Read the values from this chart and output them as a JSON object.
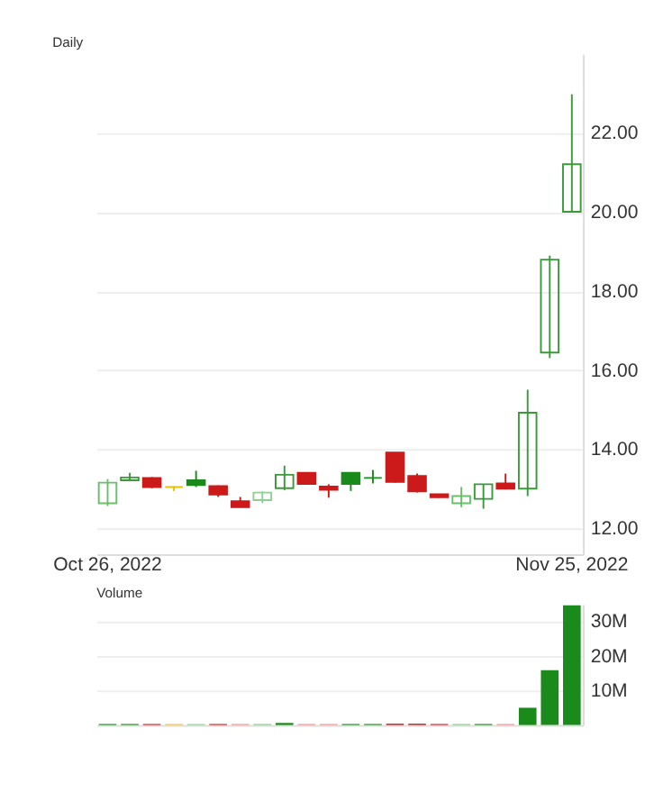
{
  "chart_data": [
    {
      "type": "candlestick",
      "title": "Daily",
      "categories": [
        "Oct 26, 2022",
        null,
        null,
        null,
        null,
        null,
        null,
        null,
        null,
        null,
        null,
        null,
        null,
        null,
        null,
        null,
        null,
        null,
        null,
        null,
        null,
        "Nov 25, 2022"
      ],
      "ohlc": [
        [
          12.64,
          13.25,
          12.57,
          13.16
        ],
        [
          13.22,
          13.41,
          13.2,
          13.29
        ],
        [
          13.28,
          13.3,
          13.02,
          13.05
        ],
        [
          13.05,
          13.07,
          12.95,
          13.05
        ],
        [
          13.22,
          13.46,
          13.05,
          13.1
        ],
        [
          13.07,
          13.09,
          12.8,
          12.86
        ],
        [
          12.69,
          12.8,
          12.53,
          12.54
        ],
        [
          12.72,
          12.94,
          12.64,
          12.91
        ],
        [
          13.02,
          13.59,
          12.97,
          13.36
        ],
        [
          13.41,
          13.41,
          13.12,
          13.13
        ],
        [
          13.06,
          13.12,
          12.78,
          12.98
        ],
        [
          13.41,
          13.41,
          12.95,
          13.13
        ],
        [
          13.28,
          13.48,
          13.14,
          13.28
        ],
        [
          13.92,
          13.92,
          13.16,
          13.18
        ],
        [
          13.33,
          13.39,
          12.91,
          12.94
        ],
        [
          12.87,
          12.87,
          12.78,
          12.79
        ],
        [
          12.64,
          13.05,
          12.54,
          12.82
        ],
        [
          12.75,
          13.12,
          12.5,
          13.12
        ],
        [
          13.14,
          13.39,
          12.99,
          13.01
        ],
        [
          13.01,
          15.51,
          12.82,
          14.93
        ],
        [
          16.45,
          18.9,
          16.31,
          18.8
        ],
        [
          20.01,
          22.98,
          20.0,
          21.21
        ]
      ],
      "colors": [
        "#6abf6a",
        "#3a9a3a",
        "#cc1a1a",
        "#e6c200",
        "#1a8a1a",
        "#cc1a1a",
        "#cc1a1a",
        "#8fd08f",
        "#3a9a3a",
        "#cc1a1a",
        "#cc1a1a",
        "#1a8a1a",
        "#1a8a1a",
        "#cc1a1a",
        "#cc1a1a",
        "#cc1a1a",
        "#6abf6a",
        "#3a9a3a",
        "#cc1a1a",
        "#3a9a3a",
        "#3a9a3a",
        "#3a9a3a"
      ],
      "ylim": [
        11.35,
        24
      ],
      "yticks": [
        {
          "value": 12,
          "label": "12.00"
        },
        {
          "value": 14,
          "label": "14.00"
        },
        {
          "value": 16,
          "label": "16.00"
        },
        {
          "value": 18,
          "label": "18.00"
        },
        {
          "value": 20,
          "label": "20.00"
        },
        {
          "value": 22,
          "label": "22.00"
        }
      ],
      "grid": "y"
    },
    {
      "type": "bar",
      "title": "Volume",
      "categories": [
        null,
        null,
        null,
        null,
        null,
        null,
        null,
        null,
        null,
        null,
        null,
        null,
        null,
        null,
        null,
        null,
        null,
        null,
        null,
        null,
        null,
        null
      ],
      "values": [
        0.3,
        0.3,
        0.3,
        0.3,
        0.3,
        0.3,
        0.3,
        0.3,
        0.6,
        0.3,
        0.3,
        0.3,
        0.3,
        0.4,
        0.4,
        0.3,
        0.3,
        0.3,
        0.3,
        5.0,
        15.9,
        34.7
      ],
      "colors": [
        "#1a8a1a",
        "#1a8a1a",
        "#d42020",
        "#f0c040",
        "#80cc80",
        "#d42020",
        "#f09090",
        "#80cc80",
        "#1a8a1a",
        "#f09090",
        "#f09090",
        "#1a8a1a",
        "#1a8a1a",
        "#d42020",
        "#d42020",
        "#d42020",
        "#80cc80",
        "#1a8a1a",
        "#f09090",
        "#1a8a1a",
        "#1a8a1a",
        "#1a8a1a"
      ],
      "ylim": [
        0,
        35
      ],
      "yticks": [
        {
          "value": 10,
          "label": "10M"
        },
        {
          "value": 20,
          "label": "20M"
        },
        {
          "value": 30,
          "label": "30M"
        }
      ],
      "grid": "y",
      "tick_labels": "y"
    }
  ]
}
